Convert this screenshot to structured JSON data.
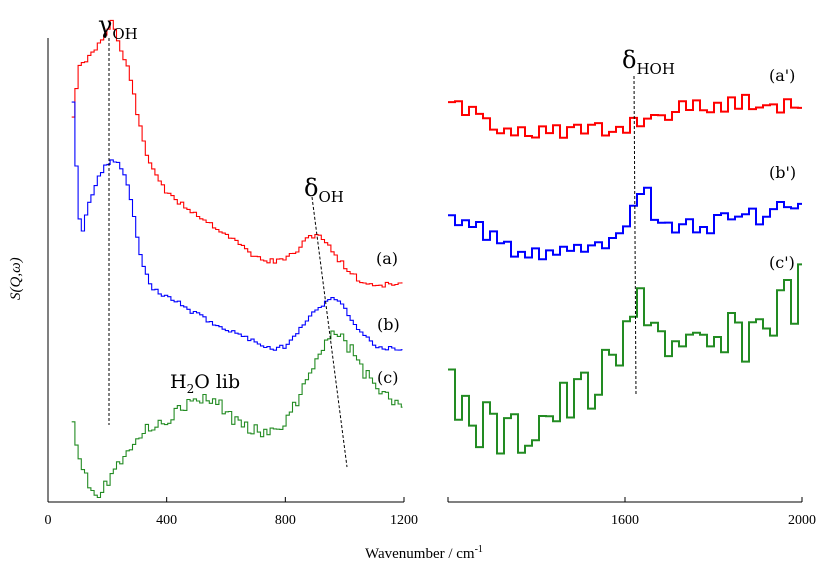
{
  "chart_data": {
    "type": "line",
    "xlabel": "Wavenumber / cm",
    "xlabel_superscript": "-1",
    "ylabel": "S(Q,ω)",
    "x_tick_labels": [
      "0",
      "400",
      "800",
      "1200",
      "1600",
      "2000"
    ],
    "panels": [
      {
        "xlim": [
          0,
          1200
        ],
        "xticks": [
          0,
          400,
          800,
          1200
        ],
        "series": [
          {
            "label": "(a)",
            "color": "#ff0000",
            "style": "step-fine",
            "seed": 11,
            "noise": 2.6,
            "x_range": [
              80,
              1195
            ],
            "profile": [
              [
                80,
                115
              ],
              [
                100,
                68
              ],
              [
                140,
                55
              ],
              [
                180,
                38
              ],
              [
                210,
                20
              ],
              [
                240,
                50
              ],
              [
                270,
                72
              ],
              [
                300,
                120
              ],
              [
                330,
                158
              ],
              [
                400,
                195
              ],
              [
                500,
                215
              ],
              [
                600,
                235
              ],
              [
                700,
                258
              ],
              [
                760,
                262
              ],
              [
                820,
                255
              ],
              [
                880,
                236
              ],
              [
                910,
                234
              ],
              [
                950,
                250
              ],
              [
                1000,
                268
              ],
              [
                1050,
                282
              ],
              [
                1100,
                285
              ],
              [
                1195,
                284
              ]
            ]
          },
          {
            "label": "(b)",
            "color": "#0000ff",
            "style": "step-fine",
            "seed": 23,
            "noise": 2.4,
            "x_range": [
              80,
              1195
            ],
            "profile": [
              [
                80,
                100
              ],
              [
                90,
                160
              ],
              [
                100,
                215
              ],
              [
                110,
                234
              ],
              [
                130,
                205
              ],
              [
                170,
                175
              ],
              [
                210,
                158
              ],
              [
                250,
                170
              ],
              [
                280,
                205
              ],
              [
                310,
                262
              ],
              [
                350,
                290
              ],
              [
                420,
                300
              ],
              [
                500,
                315
              ],
              [
                600,
                330
              ],
              [
                700,
                342
              ],
              [
                760,
                350
              ],
              [
                800,
                345
              ],
              [
                860,
                322
              ],
              [
                920,
                305
              ],
              [
                960,
                297
              ],
              [
                1000,
                310
              ],
              [
                1040,
                330
              ],
              [
                1100,
                345
              ],
              [
                1195,
                352
              ]
            ]
          },
          {
            "label": "(c)",
            "color": "#228b22",
            "style": "step-fine",
            "seed": 37,
            "noise": 6.5,
            "x_range": [
              80,
              1195
            ],
            "profile": [
              [
                80,
                420
              ],
              [
                100,
                455
              ],
              [
                130,
                480
              ],
              [
                160,
                495
              ],
              [
                200,
                480
              ],
              [
                260,
                448
              ],
              [
                320,
                432
              ],
              [
                400,
                418
              ],
              [
                480,
                402
              ],
              [
                560,
                400
              ],
              [
                620,
                420
              ],
              [
                700,
                430
              ],
              [
                760,
                435
              ],
              [
                820,
                410
              ],
              [
                870,
                378
              ],
              [
                920,
                345
              ],
              [
                960,
                332
              ],
              [
                1000,
                342
              ],
              [
                1060,
                372
              ],
              [
                1120,
                395
              ],
              [
                1195,
                408
              ]
            ]
          }
        ],
        "annotations": [
          {
            "label": "γ",
            "subscript": "OH"
          },
          {
            "label": "δ",
            "subscript": "OH"
          },
          {
            "label": "H",
            "subscript": "2",
            "rest": "O lib"
          }
        ]
      },
      {
        "xlim": [
          1200,
          2000
        ],
        "xticks": [
          1200,
          1600,
          2000
        ],
        "series": [
          {
            "label": "(a')",
            "color": "#ff0000",
            "style": "step-coarse",
            "seed": 51,
            "noise": 9,
            "x_range": [
              1200,
              2000
            ],
            "profile": [
              [
                1200,
                105
              ],
              [
                1300,
                125
              ],
              [
                1400,
                130
              ],
              [
                1500,
                133
              ],
              [
                1560,
                130
              ],
              [
                1620,
                120
              ],
              [
                1700,
                110
              ],
              [
                1800,
                105
              ],
              [
                1900,
                100
              ],
              [
                2000,
                108
              ]
            ]
          },
          {
            "label": "(b')",
            "color": "#0000ff",
            "style": "step-coarse",
            "seed": 63,
            "noise": 11,
            "x_range": [
              1200,
              2000
            ],
            "profile": [
              [
                1200,
                218
              ],
              [
                1300,
                240
              ],
              [
                1400,
                255
              ],
              [
                1500,
                255
              ],
              [
                1560,
                238
              ],
              [
                1600,
                215
              ],
              [
                1625,
                185
              ],
              [
                1660,
                210
              ],
              [
                1720,
                228
              ],
              [
                1800,
                222
              ],
              [
                1900,
                215
              ],
              [
                2000,
                205
              ]
            ]
          },
          {
            "label": "(c')",
            "color": "#228b22",
            "style": "step-coarse",
            "seed": 77,
            "noise": 30,
            "x_range": [
              1200,
              2000
            ],
            "profile": [
              [
                1200,
                395
              ],
              [
                1260,
                420
              ],
              [
                1330,
                440
              ],
              [
                1400,
                418
              ],
              [
                1480,
                400
              ],
              [
                1560,
                375
              ],
              [
                1610,
                330
              ],
              [
                1630,
                285
              ],
              [
                1660,
                320
              ],
              [
                1720,
                358
              ],
              [
                1800,
                350
              ],
              [
                1880,
                330
              ],
              [
                1960,
                300
              ],
              [
                2000,
                285
              ]
            ]
          }
        ],
        "annotations": [
          {
            "label": "δ",
            "subscript": "HOH"
          }
        ]
      }
    ]
  }
}
